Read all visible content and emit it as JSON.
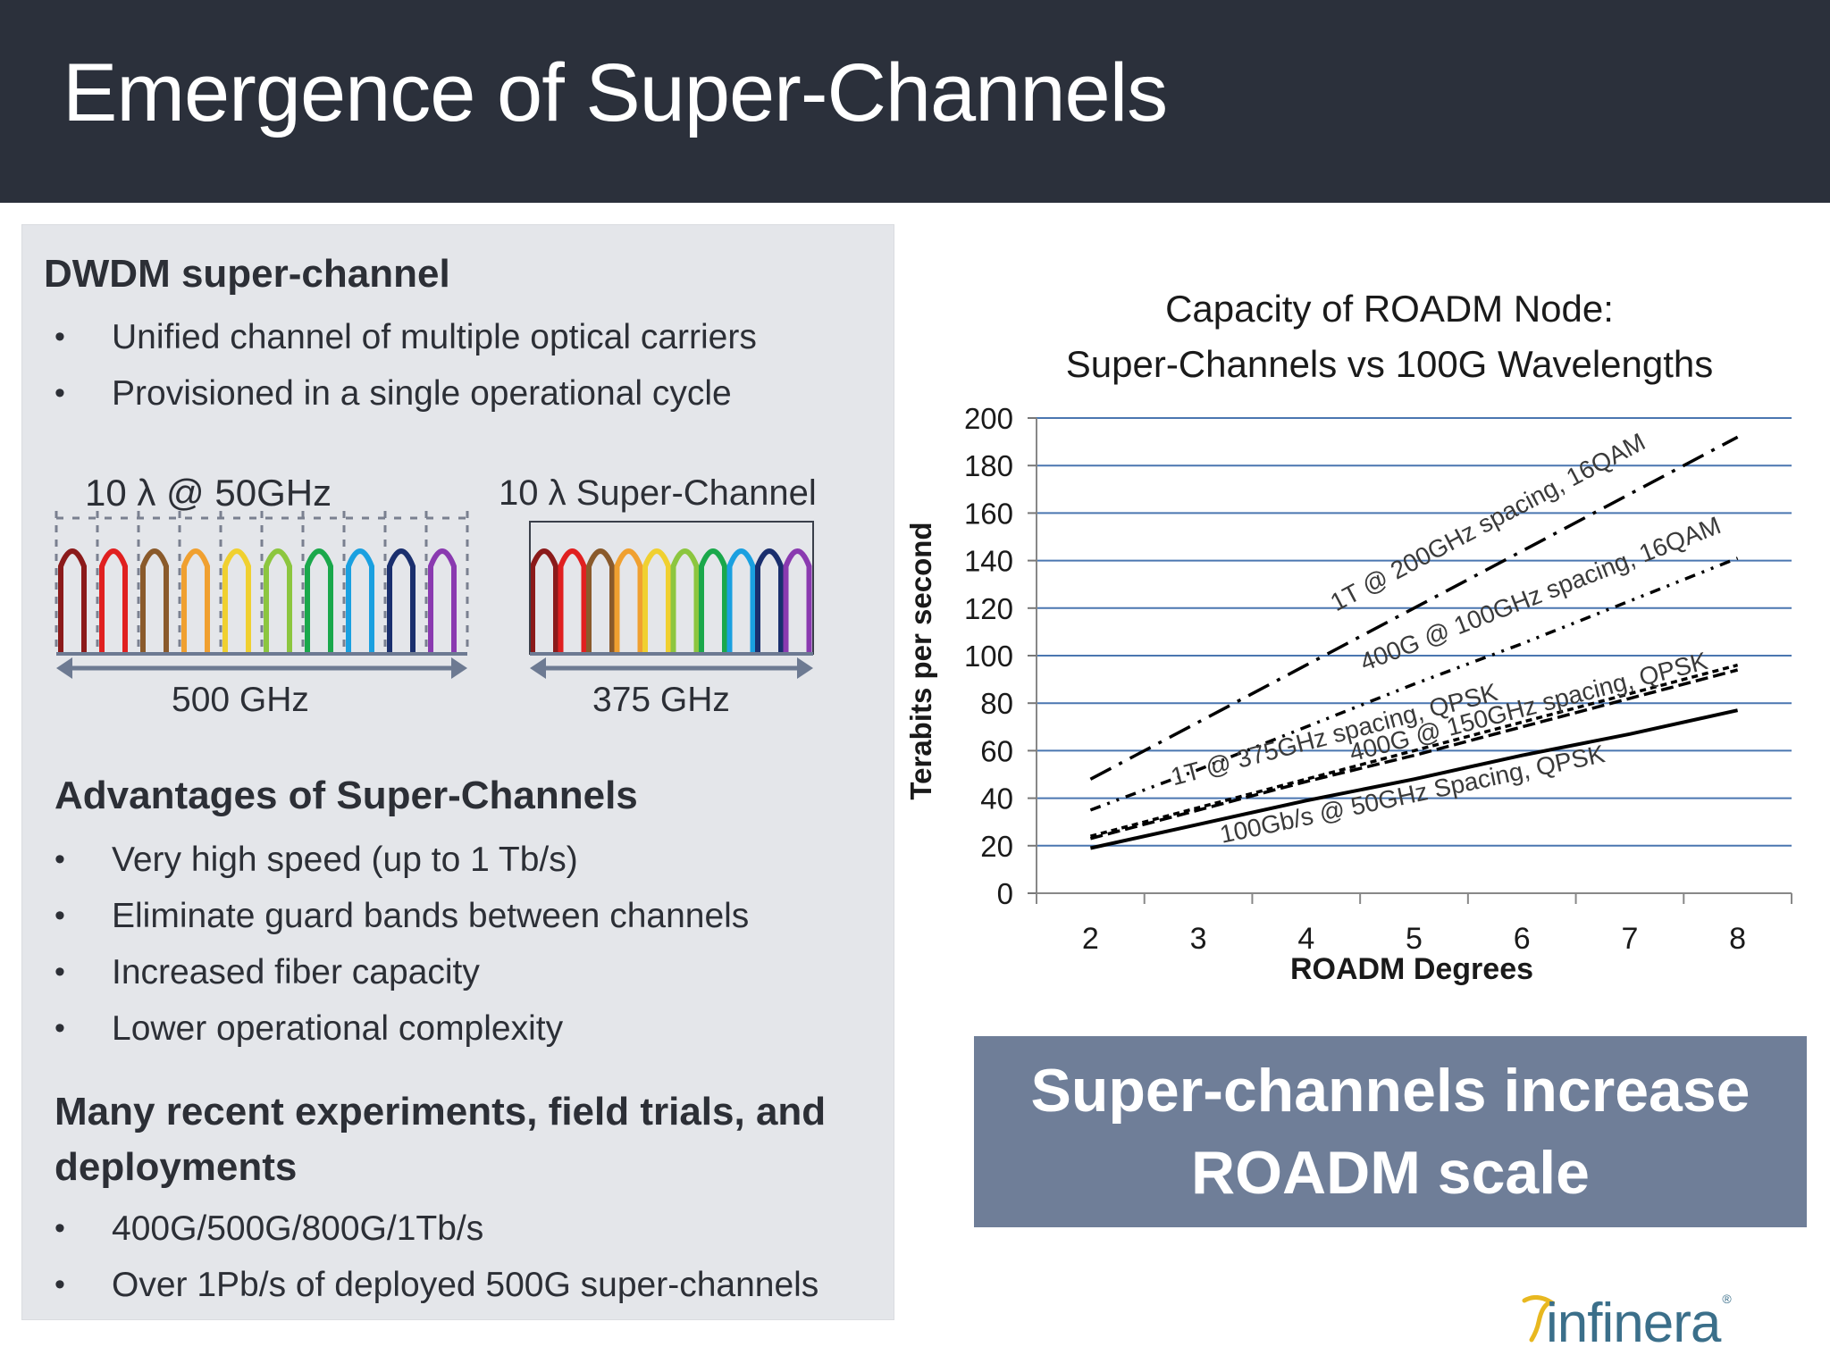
{
  "header": {
    "title": "Emergence of Super-Channels"
  },
  "dwdm": {
    "heading": "DWDM super-channel",
    "bullets": [
      "Unified channel of multiple optical carriers",
      "Provisioned in a single operational cycle"
    ]
  },
  "diagram": {
    "left_label": "10 λ @ 50GHz",
    "right_label": "10 λ Super-Channel",
    "left_span": "500 GHz",
    "right_span": "375 GHz",
    "carrier_colors": [
      "#8b1a1a",
      "#e02020",
      "#8a5a2b",
      "#f0a030",
      "#f0d030",
      "#8cc63f",
      "#1aa84b",
      "#1aa0e0",
      "#1a2f6e",
      "#8a3ab0"
    ]
  },
  "advantages": {
    "heading": "Advantages of Super-Channels",
    "bullets": [
      "Very high speed (up to 1 Tb/s)",
      "Eliminate guard bands between channels",
      "Increased fiber capacity",
      "Lower operational complexity"
    ]
  },
  "experiments": {
    "heading_line1": "Many recent experiments, field trials, and",
    "heading_line2": "deployments",
    "bullets": [
      "400G/500G/800G/1Tb/s",
      "Over 1Pb/s of deployed 500G super-channels"
    ]
  },
  "chart_data": {
    "type": "line",
    "title": "Capacity of ROADM Node:",
    "subtitle": "Super-Channels vs 100G Wavelengths",
    "xlabel": "ROADM Degrees",
    "ylabel": "Terabits per second",
    "x": [
      2,
      3,
      4,
      5,
      6,
      7,
      8
    ],
    "ylim": [
      0,
      200
    ],
    "yticks": [
      0,
      20,
      40,
      60,
      80,
      100,
      120,
      140,
      160,
      180,
      200
    ],
    "grid": true,
    "series": [
      {
        "name": "1T @ 200GHz spacing, 16QAM",
        "values": [
          48,
          72,
          96,
          120,
          144,
          168,
          192
        ],
        "color": "#000000",
        "dash": "longdashdot",
        "label_color": "#3a3a3a"
      },
      {
        "name": "400G @ 100GHz spacing, 16QAM",
        "values": [
          35,
          52,
          70,
          88,
          105,
          123,
          141
        ],
        "color": "#000000",
        "dash": "dashdotdot",
        "label_color": "#3a3a3a"
      },
      {
        "name": "1T @ 375GHz spacing, QPSK",
        "values": [
          24,
          36,
          48,
          60,
          72,
          84,
          96
        ],
        "color": "#000000",
        "dash": "shortdash",
        "label_color": "#3a3a3a"
      },
      {
        "name": "400G @ 150GHz spacing, QPSK",
        "values": [
          23,
          35,
          47,
          58,
          70,
          82,
          94
        ],
        "color": "#000000",
        "dash": "dash",
        "label_color": "#3a3a3a"
      },
      {
        "name": "100Gb/s @ 50GHz Spacing, QPSK",
        "values": [
          19,
          29,
          39,
          48,
          58,
          67,
          77
        ],
        "color": "#000000",
        "dash": "solid",
        "label_color": "#3a3a3a"
      }
    ]
  },
  "callout": {
    "line1": "Super-channels  increase",
    "line2": "ROADM scale"
  },
  "logo": {
    "text": "infinera",
    "reg": "®"
  }
}
